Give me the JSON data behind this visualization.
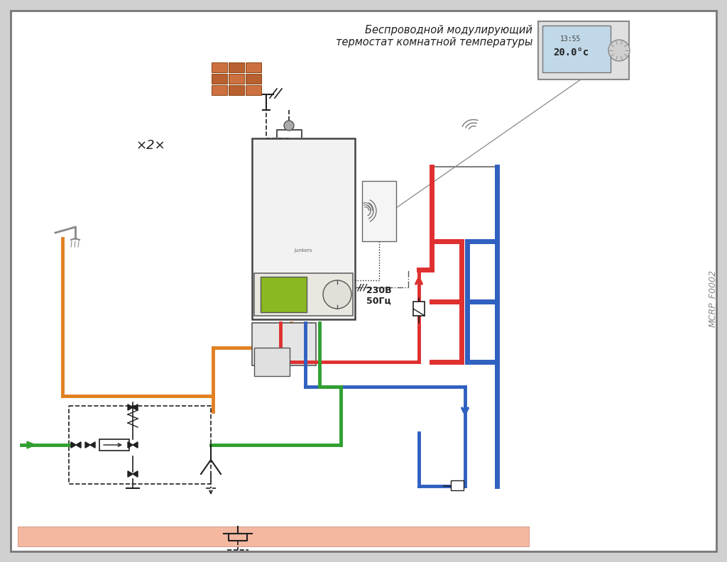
{
  "title": "",
  "bg_color": "#f5f5f5",
  "border_color": "#b0b0b0",
  "label_thermostat": "Беспроводной модулирующий\nтермостат комнатной температуры",
  "label_voltage": "230В\n50Гц",
  "label_gas": "×2×",
  "watermark": "MCRP_F0002",
  "floor_color": "#f4b8a0",
  "pipe_red": "#e03030",
  "pipe_blue": "#3060c0",
  "pipe_orange": "#e08020",
  "pipe_green": "#30a030",
  "pipe_black": "#202020",
  "pipe_lw": 3.5
}
